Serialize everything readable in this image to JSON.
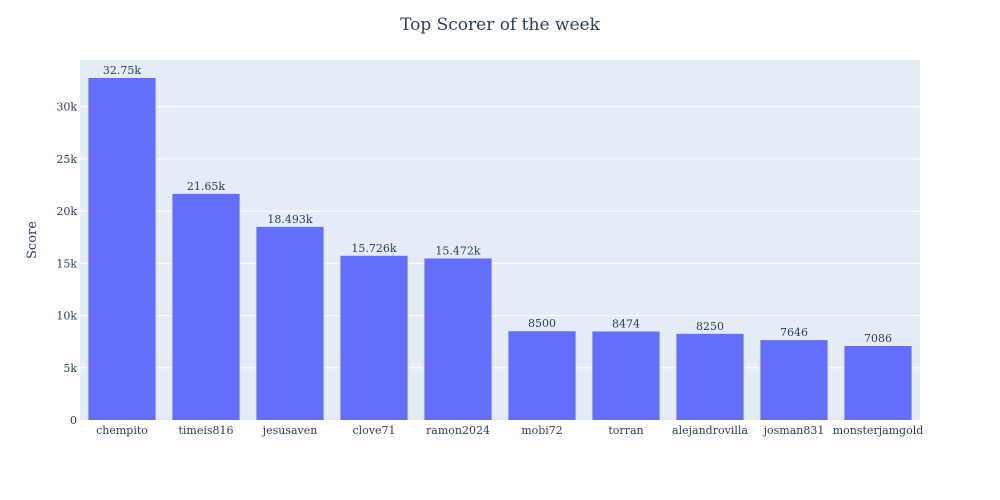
{
  "chart_data": {
    "type": "bar",
    "title": "Top Scorer of the week",
    "xlabel": "",
    "ylabel": "Score",
    "categories": [
      "chempito",
      "timeis816",
      "jesusaven",
      "clove71",
      "ramon2024",
      "mobi72",
      "torran",
      "alejandrovilla",
      "josman831",
      "monsterjamgold"
    ],
    "values": [
      32750,
      21650,
      18493,
      15726,
      15472,
      8500,
      8474,
      8250,
      7646,
      7086
    ],
    "data_labels": [
      "32.75k",
      "21.65k",
      "18.493k",
      "15.726k",
      "15.472k",
      "8500",
      "8474",
      "8250",
      "7646",
      "7086"
    ],
    "ylim": [
      0,
      34474
    ],
    "yticks": [
      0,
      5000,
      10000,
      15000,
      20000,
      25000,
      30000
    ],
    "ytick_labels": [
      "0",
      "5k",
      "10k",
      "15k",
      "20k",
      "25k",
      "30k"
    ],
    "grid": true,
    "legend": false,
    "colors": {
      "bar": "#636efa",
      "plot_background": "#e5ecf6",
      "grid": "#ffffff",
      "text": "#2a3f5f"
    }
  }
}
